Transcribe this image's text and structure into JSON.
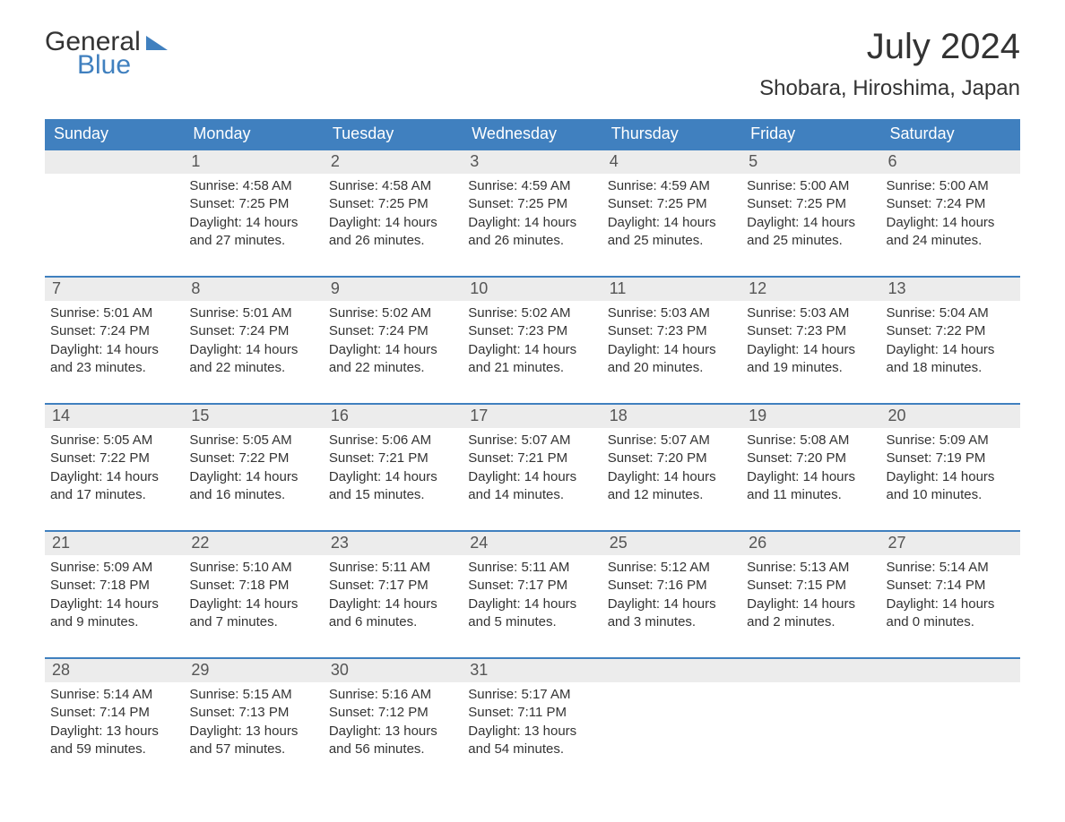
{
  "brand": {
    "word1": "General",
    "word2": "Blue"
  },
  "title": "July 2024",
  "location": "Shobara, Hiroshima, Japan",
  "colors": {
    "header_bg": "#4080bf",
    "header_text": "#ffffff",
    "daynum_bg": "#ececec",
    "daynum_text": "#555555",
    "body_text": "#333333",
    "row_border": "#4080bf",
    "page_bg": "#ffffff"
  },
  "typography": {
    "title_fontsize": 40,
    "location_fontsize": 24,
    "weekday_fontsize": 18,
    "body_fontsize": 15
  },
  "weekdays": [
    "Sunday",
    "Monday",
    "Tuesday",
    "Wednesday",
    "Thursday",
    "Friday",
    "Saturday"
  ],
  "weeks": [
    [
      null,
      {
        "n": "1",
        "sunrise": "Sunrise: 4:58 AM",
        "sunset": "Sunset: 7:25 PM",
        "daylight": "Daylight: 14 hours and 27 minutes."
      },
      {
        "n": "2",
        "sunrise": "Sunrise: 4:58 AM",
        "sunset": "Sunset: 7:25 PM",
        "daylight": "Daylight: 14 hours and 26 minutes."
      },
      {
        "n": "3",
        "sunrise": "Sunrise: 4:59 AM",
        "sunset": "Sunset: 7:25 PM",
        "daylight": "Daylight: 14 hours and 26 minutes."
      },
      {
        "n": "4",
        "sunrise": "Sunrise: 4:59 AM",
        "sunset": "Sunset: 7:25 PM",
        "daylight": "Daylight: 14 hours and 25 minutes."
      },
      {
        "n": "5",
        "sunrise": "Sunrise: 5:00 AM",
        "sunset": "Sunset: 7:25 PM",
        "daylight": "Daylight: 14 hours and 25 minutes."
      },
      {
        "n": "6",
        "sunrise": "Sunrise: 5:00 AM",
        "sunset": "Sunset: 7:24 PM",
        "daylight": "Daylight: 14 hours and 24 minutes."
      }
    ],
    [
      {
        "n": "7",
        "sunrise": "Sunrise: 5:01 AM",
        "sunset": "Sunset: 7:24 PM",
        "daylight": "Daylight: 14 hours and 23 minutes."
      },
      {
        "n": "8",
        "sunrise": "Sunrise: 5:01 AM",
        "sunset": "Sunset: 7:24 PM",
        "daylight": "Daylight: 14 hours and 22 minutes."
      },
      {
        "n": "9",
        "sunrise": "Sunrise: 5:02 AM",
        "sunset": "Sunset: 7:24 PM",
        "daylight": "Daylight: 14 hours and 22 minutes."
      },
      {
        "n": "10",
        "sunrise": "Sunrise: 5:02 AM",
        "sunset": "Sunset: 7:23 PM",
        "daylight": "Daylight: 14 hours and 21 minutes."
      },
      {
        "n": "11",
        "sunrise": "Sunrise: 5:03 AM",
        "sunset": "Sunset: 7:23 PM",
        "daylight": "Daylight: 14 hours and 20 minutes."
      },
      {
        "n": "12",
        "sunrise": "Sunrise: 5:03 AM",
        "sunset": "Sunset: 7:23 PM",
        "daylight": "Daylight: 14 hours and 19 minutes."
      },
      {
        "n": "13",
        "sunrise": "Sunrise: 5:04 AM",
        "sunset": "Sunset: 7:22 PM",
        "daylight": "Daylight: 14 hours and 18 minutes."
      }
    ],
    [
      {
        "n": "14",
        "sunrise": "Sunrise: 5:05 AM",
        "sunset": "Sunset: 7:22 PM",
        "daylight": "Daylight: 14 hours and 17 minutes."
      },
      {
        "n": "15",
        "sunrise": "Sunrise: 5:05 AM",
        "sunset": "Sunset: 7:22 PM",
        "daylight": "Daylight: 14 hours and 16 minutes."
      },
      {
        "n": "16",
        "sunrise": "Sunrise: 5:06 AM",
        "sunset": "Sunset: 7:21 PM",
        "daylight": "Daylight: 14 hours and 15 minutes."
      },
      {
        "n": "17",
        "sunrise": "Sunrise: 5:07 AM",
        "sunset": "Sunset: 7:21 PM",
        "daylight": "Daylight: 14 hours and 14 minutes."
      },
      {
        "n": "18",
        "sunrise": "Sunrise: 5:07 AM",
        "sunset": "Sunset: 7:20 PM",
        "daylight": "Daylight: 14 hours and 12 minutes."
      },
      {
        "n": "19",
        "sunrise": "Sunrise: 5:08 AM",
        "sunset": "Sunset: 7:20 PM",
        "daylight": "Daylight: 14 hours and 11 minutes."
      },
      {
        "n": "20",
        "sunrise": "Sunrise: 5:09 AM",
        "sunset": "Sunset: 7:19 PM",
        "daylight": "Daylight: 14 hours and 10 minutes."
      }
    ],
    [
      {
        "n": "21",
        "sunrise": "Sunrise: 5:09 AM",
        "sunset": "Sunset: 7:18 PM",
        "daylight": "Daylight: 14 hours and 9 minutes."
      },
      {
        "n": "22",
        "sunrise": "Sunrise: 5:10 AM",
        "sunset": "Sunset: 7:18 PM",
        "daylight": "Daylight: 14 hours and 7 minutes."
      },
      {
        "n": "23",
        "sunrise": "Sunrise: 5:11 AM",
        "sunset": "Sunset: 7:17 PM",
        "daylight": "Daylight: 14 hours and 6 minutes."
      },
      {
        "n": "24",
        "sunrise": "Sunrise: 5:11 AM",
        "sunset": "Sunset: 7:17 PM",
        "daylight": "Daylight: 14 hours and 5 minutes."
      },
      {
        "n": "25",
        "sunrise": "Sunrise: 5:12 AM",
        "sunset": "Sunset: 7:16 PM",
        "daylight": "Daylight: 14 hours and 3 minutes."
      },
      {
        "n": "26",
        "sunrise": "Sunrise: 5:13 AM",
        "sunset": "Sunset: 7:15 PM",
        "daylight": "Daylight: 14 hours and 2 minutes."
      },
      {
        "n": "27",
        "sunrise": "Sunrise: 5:14 AM",
        "sunset": "Sunset: 7:14 PM",
        "daylight": "Daylight: 14 hours and 0 minutes."
      }
    ],
    [
      {
        "n": "28",
        "sunrise": "Sunrise: 5:14 AM",
        "sunset": "Sunset: 7:14 PM",
        "daylight": "Daylight: 13 hours and 59 minutes."
      },
      {
        "n": "29",
        "sunrise": "Sunrise: 5:15 AM",
        "sunset": "Sunset: 7:13 PM",
        "daylight": "Daylight: 13 hours and 57 minutes."
      },
      {
        "n": "30",
        "sunrise": "Sunrise: 5:16 AM",
        "sunset": "Sunset: 7:12 PM",
        "daylight": "Daylight: 13 hours and 56 minutes."
      },
      {
        "n": "31",
        "sunrise": "Sunrise: 5:17 AM",
        "sunset": "Sunset: 7:11 PM",
        "daylight": "Daylight: 13 hours and 54 minutes."
      },
      null,
      null,
      null
    ]
  ]
}
